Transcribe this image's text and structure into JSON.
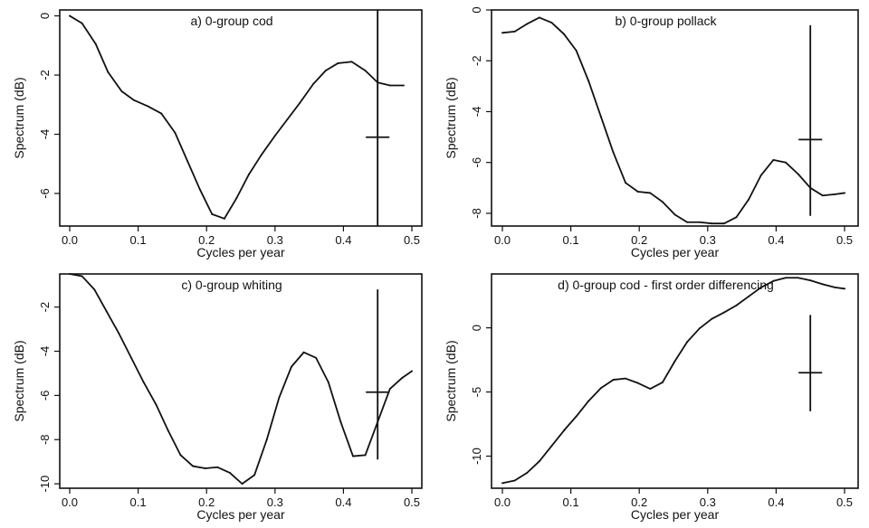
{
  "chart_data": [
    {
      "type": "line",
      "title": "a) 0-group cod",
      "xlabel": "Cycles per year",
      "ylabel": "Spectrum (dB)",
      "xlim": [
        0.0,
        0.5
      ],
      "ylim": [
        -7.1,
        0.2
      ],
      "xticks": [
        "0.0",
        "0.1",
        "0.2",
        "0.3",
        "0.4",
        "0.5"
      ],
      "yticks": [
        "0",
        "-2",
        "-4",
        "-6"
      ],
      "x": [
        0.0,
        0.018,
        0.038,
        0.056,
        0.076,
        0.094,
        0.114,
        0.134,
        0.154,
        0.172,
        0.19,
        0.208,
        0.226,
        0.244,
        0.262,
        0.28,
        0.3,
        0.318,
        0.336,
        0.356,
        0.374,
        0.392,
        0.412,
        0.432,
        0.45,
        0.468,
        0.488
      ],
      "y": [
        0.0,
        -0.25,
        -0.95,
        -1.9,
        -2.55,
        -2.85,
        -3.05,
        -3.3,
        -3.95,
        -4.9,
        -5.85,
        -6.7,
        -6.85,
        -6.15,
        -5.35,
        -4.7,
        -4.05,
        -3.5,
        -2.95,
        -2.3,
        -1.85,
        -1.6,
        -1.55,
        -1.85,
        -2.25,
        -2.35,
        -2.35
      ],
      "reference_line_x": 0.45,
      "confidence_bar": {
        "x": 0.45,
        "center": -4.1,
        "low": -7.1,
        "high": 0.2
      }
    },
    {
      "type": "line",
      "title": "b) 0-group pollack",
      "xlabel": "Cycles per year",
      "ylabel": "Spectrum (dB)",
      "xlim": [
        0.0,
        0.5
      ],
      "ylim": [
        -8.5,
        0.0
      ],
      "xticks": [
        "0.0",
        "0.1",
        "0.2",
        "0.3",
        "0.4",
        "0.5"
      ],
      "yticks": [
        "0",
        "-2",
        "-4",
        "-6",
        "-8"
      ],
      "x": [
        0.0,
        0.018,
        0.036,
        0.054,
        0.072,
        0.09,
        0.108,
        0.126,
        0.144,
        0.162,
        0.18,
        0.198,
        0.216,
        0.234,
        0.252,
        0.27,
        0.288,
        0.306,
        0.324,
        0.342,
        0.36,
        0.378,
        0.396,
        0.414,
        0.432,
        0.45,
        0.468,
        0.486,
        0.5
      ],
      "y": [
        -0.9,
        -0.85,
        -0.55,
        -0.3,
        -0.5,
        -0.95,
        -1.6,
        -2.8,
        -4.2,
        -5.6,
        -6.8,
        -7.15,
        -7.2,
        -7.55,
        -8.05,
        -8.35,
        -8.35,
        -8.4,
        -8.4,
        -8.15,
        -7.45,
        -6.5,
        -5.9,
        -6.0,
        -6.45,
        -7.0,
        -7.3,
        -7.25,
        -7.2
      ],
      "confidence_bar": {
        "x": 0.45,
        "center": -5.1,
        "low": -8.1,
        "high": -0.6
      }
    },
    {
      "type": "line",
      "title": "c) 0-group whiting",
      "xlabel": "Cycles per year",
      "ylabel": "Spectrum (dB)",
      "xlim": [
        0.0,
        0.5
      ],
      "ylim": [
        -10.2,
        -0.5
      ],
      "xticks": [
        "0.0",
        "0.1",
        "0.2",
        "0.3",
        "0.4",
        "0.5"
      ],
      "yticks": [
        "-2",
        "-4",
        "-6",
        "-8",
        "-10"
      ],
      "x": [
        0.0,
        0.018,
        0.036,
        0.054,
        0.072,
        0.09,
        0.108,
        0.126,
        0.144,
        0.162,
        0.18,
        0.198,
        0.216,
        0.234,
        0.252,
        0.27,
        0.288,
        0.306,
        0.324,
        0.342,
        0.36,
        0.378,
        0.396,
        0.414,
        0.432,
        0.45,
        0.468,
        0.486,
        0.5
      ],
      "y": [
        -0.5,
        -0.6,
        -1.2,
        -2.2,
        -3.2,
        -4.3,
        -5.4,
        -6.4,
        -7.6,
        -8.7,
        -9.2,
        -9.3,
        -9.25,
        -9.5,
        -10.0,
        -9.6,
        -8.0,
        -6.1,
        -4.7,
        -4.05,
        -4.3,
        -5.4,
        -7.2,
        -8.75,
        -8.7,
        -7.2,
        -5.7,
        -5.2,
        -4.9
      ],
      "confidence_bar": {
        "x": 0.45,
        "center": -5.85,
        "low": -8.9,
        "high": -1.2
      }
    },
    {
      "type": "line",
      "title": "d) 0-group cod  - first order differencing",
      "xlabel": "Cycles per year",
      "ylabel": "Spectrum (dB)",
      "xlim": [
        0.0,
        0.5
      ],
      "ylim": [
        -12.5,
        4.2
      ],
      "xticks": [
        "0.0",
        "0.1",
        "0.2",
        "0.3",
        "0.4",
        "0.5"
      ],
      "yticks": [
        "0",
        "-5",
        "-10"
      ],
      "x": [
        0.0,
        0.018,
        0.036,
        0.054,
        0.072,
        0.09,
        0.108,
        0.126,
        0.144,
        0.162,
        0.18,
        0.198,
        0.216,
        0.234,
        0.252,
        0.27,
        0.288,
        0.306,
        0.324,
        0.342,
        0.36,
        0.378,
        0.396,
        0.414,
        0.432,
        0.45,
        0.468,
        0.486,
        0.5
      ],
      "y": [
        -12.1,
        -11.9,
        -11.3,
        -10.4,
        -9.2,
        -8.0,
        -6.9,
        -5.7,
        -4.7,
        -4.05,
        -3.95,
        -4.3,
        -4.75,
        -4.25,
        -2.6,
        -1.1,
        -0.05,
        0.7,
        1.2,
        1.75,
        2.45,
        3.15,
        3.65,
        3.9,
        3.9,
        3.7,
        3.4,
        3.15,
        3.05
      ],
      "confidence_bar": {
        "x": 0.45,
        "center": -3.5,
        "low": -6.5,
        "high": 1.0
      }
    }
  ]
}
